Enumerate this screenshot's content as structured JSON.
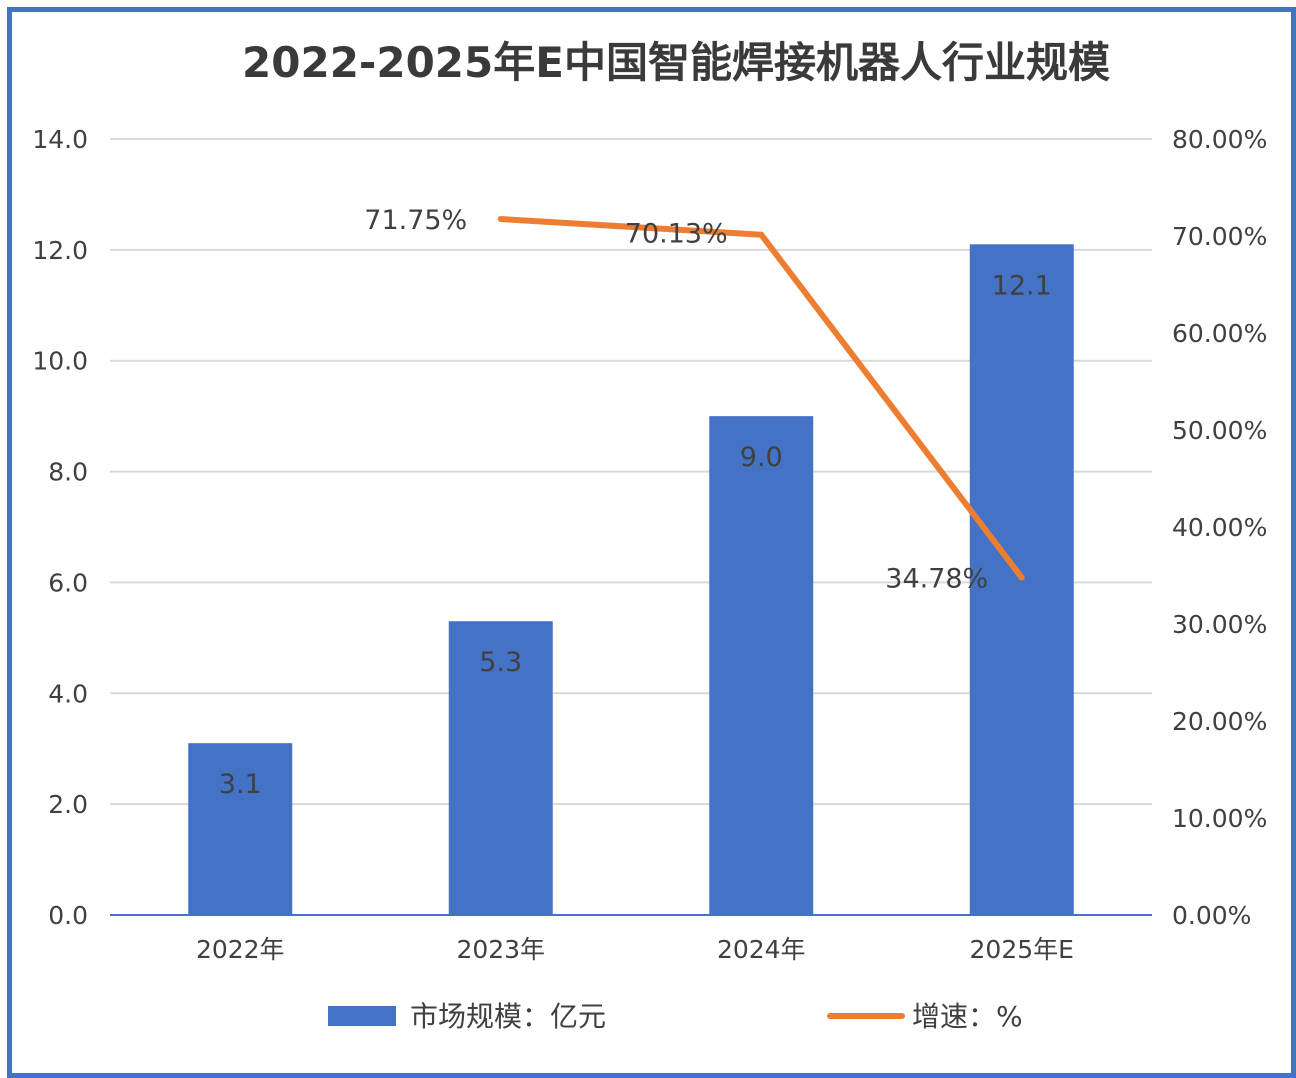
{
  "chart_data": {
    "type": "bar+line",
    "title": "2022-2025年E中国智能焊接机器人行业规模",
    "categories": [
      "2022年",
      "2023年",
      "2024年",
      "2025年E"
    ],
    "series": [
      {
        "name": "市场规模：亿元",
        "type": "bar",
        "axis": "left",
        "color": "#4472C4",
        "values": [
          3.1,
          5.3,
          9.0,
          12.1
        ],
        "labels": [
          "3.1",
          "5.3",
          "9.0",
          "12.1"
        ]
      },
      {
        "name": "增速：%",
        "type": "line",
        "axis": "right",
        "color": "#ED7D31",
        "values": [
          null,
          71.75,
          70.13,
          34.78
        ],
        "labels": [
          "",
          "71.75%",
          "70.13%",
          "34.78%"
        ]
      }
    ],
    "left_axis": {
      "ylim": [
        0,
        14
      ],
      "ticks": [
        "0.0",
        "2.0",
        "4.0",
        "6.0",
        "8.0",
        "10.0",
        "12.0",
        "14.0"
      ]
    },
    "right_axis": {
      "ylim": [
        0,
        80
      ],
      "ticks": [
        "0.00%",
        "10.00%",
        "20.00%",
        "30.00%",
        "40.00%",
        "50.00%",
        "60.00%",
        "70.00%",
        "80.00%"
      ]
    },
    "grid": true,
    "legend": "bottom"
  }
}
